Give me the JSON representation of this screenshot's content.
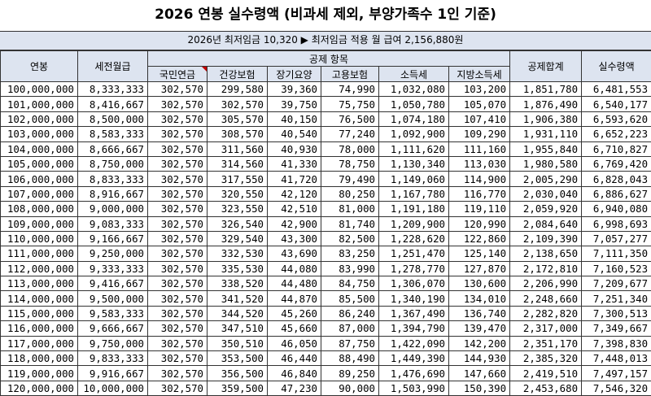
{
  "title": "2026 연봉 실수령액 (비과세 제외, 부양가족수 1인 기준)",
  "subtitle": "2026년 최저임금 10,320 ▶ 최저임금 적용 월 급여 2,156,880원",
  "headers": {
    "annual": "연봉",
    "monthly": "세전월급",
    "deduction_group": "공제 항목",
    "pension": "국민연금",
    "health": "건강보험",
    "care": "장기요양",
    "employment": "고용보험",
    "income_tax": "소득세",
    "local_tax": "지방소득세",
    "total": "공제합계",
    "net": "실수령액"
  },
  "rows": [
    [
      "100,000,000",
      "8,333,333",
      "302,570",
      "299,580",
      "39,360",
      "74,990",
      "1,032,080",
      "103,200",
      "1,851,780",
      "6,481,553"
    ],
    [
      "101,000,000",
      "8,416,667",
      "302,570",
      "302,570",
      "39,750",
      "75,750",
      "1,050,780",
      "105,070",
      "1,876,490",
      "6,540,177"
    ],
    [
      "102,000,000",
      "8,500,000",
      "302,570",
      "305,570",
      "40,150",
      "76,500",
      "1,074,180",
      "107,410",
      "1,906,380",
      "6,593,620"
    ],
    [
      "103,000,000",
      "8,583,333",
      "302,570",
      "308,570",
      "40,540",
      "77,240",
      "1,092,900",
      "109,290",
      "1,931,110",
      "6,652,223"
    ],
    [
      "104,000,000",
      "8,666,667",
      "302,570",
      "311,560",
      "40,930",
      "78,000",
      "1,111,620",
      "111,160",
      "1,955,840",
      "6,710,827"
    ],
    [
      "105,000,000",
      "8,750,000",
      "302,570",
      "314,560",
      "41,330",
      "78,750",
      "1,130,340",
      "113,030",
      "1,980,580",
      "6,769,420"
    ],
    [
      "106,000,000",
      "8,833,333",
      "302,570",
      "317,550",
      "41,720",
      "79,490",
      "1,149,060",
      "114,900",
      "2,005,290",
      "6,828,043"
    ],
    [
      "107,000,000",
      "8,916,667",
      "302,570",
      "320,550",
      "42,120",
      "80,250",
      "1,167,780",
      "116,770",
      "2,030,040",
      "6,886,627"
    ],
    [
      "108,000,000",
      "9,000,000",
      "302,570",
      "323,550",
      "42,510",
      "81,000",
      "1,191,180",
      "119,110",
      "2,059,920",
      "6,940,080"
    ],
    [
      "109,000,000",
      "9,083,333",
      "302,570",
      "326,540",
      "42,900",
      "81,740",
      "1,209,900",
      "120,990",
      "2,084,640",
      "6,998,693"
    ],
    [
      "110,000,000",
      "9,166,667",
      "302,570",
      "329,540",
      "43,300",
      "82,500",
      "1,228,620",
      "122,860",
      "2,109,390",
      "7,057,277"
    ],
    [
      "111,000,000",
      "9,250,000",
      "302,570",
      "332,530",
      "43,690",
      "83,250",
      "1,251,470",
      "125,140",
      "2,138,650",
      "7,111,350"
    ],
    [
      "112,000,000",
      "9,333,333",
      "302,570",
      "335,530",
      "44,080",
      "83,990",
      "1,278,770",
      "127,870",
      "2,172,810",
      "7,160,523"
    ],
    [
      "113,000,000",
      "9,416,667",
      "302,570",
      "338,520",
      "44,480",
      "84,750",
      "1,306,070",
      "130,600",
      "2,206,990",
      "7,209,677"
    ],
    [
      "114,000,000",
      "9,500,000",
      "302,570",
      "341,520",
      "44,870",
      "85,500",
      "1,340,190",
      "134,010",
      "2,248,660",
      "7,251,340"
    ],
    [
      "115,000,000",
      "9,583,333",
      "302,570",
      "344,520",
      "45,260",
      "86,240",
      "1,367,490",
      "136,740",
      "2,282,820",
      "7,300,513"
    ],
    [
      "116,000,000",
      "9,666,667",
      "302,570",
      "347,510",
      "45,660",
      "87,000",
      "1,394,790",
      "139,470",
      "2,317,000",
      "7,349,667"
    ],
    [
      "117,000,000",
      "9,750,000",
      "302,570",
      "350,510",
      "46,050",
      "87,750",
      "1,422,090",
      "142,200",
      "2,351,170",
      "7,398,830"
    ],
    [
      "118,000,000",
      "9,833,333",
      "302,570",
      "353,500",
      "46,440",
      "88,490",
      "1,449,390",
      "144,930",
      "2,385,320",
      "7,448,013"
    ],
    [
      "119,000,000",
      "9,916,667",
      "302,570",
      "356,500",
      "46,840",
      "89,250",
      "1,476,690",
      "147,660",
      "2,419,510",
      "7,497,157"
    ],
    [
      "120,000,000",
      "10,000,000",
      "302,570",
      "359,500",
      "47,230",
      "90,000",
      "1,503,990",
      "150,390",
      "2,453,680",
      "7,546,320"
    ]
  ]
}
